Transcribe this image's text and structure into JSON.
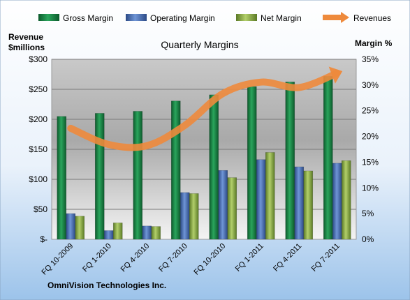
{
  "chart_data": {
    "type": "bar",
    "title": "Quarterly Margins",
    "left_axis_label_line1": "Revenue",
    "left_axis_label_line2": "$millions",
    "right_axis_label": "Margin %",
    "footer": "OmniVision Technologies Inc.",
    "categories": [
      "FQ 10-2009",
      "FQ 1-2010",
      "FQ 4-2010",
      "FQ 7-2010",
      "FQ 10-2010",
      "FQ 1-2011",
      "FQ 4-2011",
      "FQ 7-2011"
    ],
    "left_axis": {
      "min": 0,
      "max": 300,
      "step": 50,
      "tick_labels": [
        "$-",
        "$50",
        "$100",
        "$150",
        "$200",
        "$250",
        "$300"
      ]
    },
    "right_axis": {
      "min": 0,
      "max": 35,
      "step": 5,
      "tick_labels": [
        "0%",
        "5%",
        "10%",
        "15%",
        "20%",
        "25%",
        "30%",
        "35%"
      ]
    },
    "series": [
      {
        "name": "Gross Margin",
        "kind": "bar",
        "axis": "right",
        "color": "#1f8a4c",
        "values": [
          23.9,
          24.5,
          24.9,
          26.9,
          28.1,
          29.7,
          30.6,
          31.7
        ]
      },
      {
        "name": "Operating Margin",
        "kind": "bar",
        "axis": "right",
        "color": "#4a6fb5",
        "values": [
          5.0,
          1.7,
          2.6,
          9.1,
          13.4,
          15.5,
          14.1,
          14.8
        ]
      },
      {
        "name": "Net Margin",
        "kind": "bar",
        "axis": "right",
        "color": "#8fb04c",
        "values": [
          4.5,
          3.2,
          2.5,
          8.9,
          12.0,
          16.9,
          13.3,
          15.3
        ]
      },
      {
        "name": "Revenues",
        "kind": "line",
        "axis": "left",
        "color": "#ee8a3c",
        "values": [
          185,
          158,
          156,
          190,
          243,
          262,
          253,
          277
        ]
      }
    ],
    "grid": true,
    "legend_position": "top"
  }
}
